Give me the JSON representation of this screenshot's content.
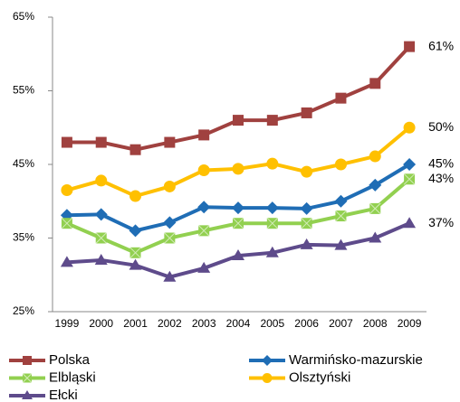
{
  "chart_data": {
    "type": "line",
    "categories": [
      "1999",
      "2000",
      "2001",
      "2002",
      "2003",
      "2004",
      "2005",
      "2006",
      "2007",
      "2008",
      "2009"
    ],
    "ylim": [
      25,
      65
    ],
    "yticks": [
      {
        "value": 25,
        "label": "25%"
      },
      {
        "value": 35,
        "label": "35%"
      },
      {
        "value": 45,
        "label": "45%"
      },
      {
        "value": 55,
        "label": "55%"
      },
      {
        "value": 65,
        "label": "65%"
      }
    ],
    "grid": false,
    "legend": "bottom",
    "series": [
      {
        "name": "Polska",
        "color": "#a0413f",
        "marker": "square",
        "values": [
          48,
          48,
          47,
          48,
          49,
          51,
          51,
          52,
          54,
          56,
          61
        ],
        "value_labels": [
          null,
          null,
          null,
          null,
          null,
          null,
          null,
          null,
          null,
          null,
          "61%"
        ]
      },
      {
        "name": "Warmińsko-mazurskie",
        "color": "#1f6db5",
        "marker": "diamond",
        "values": [
          38.1,
          38.2,
          36,
          37.1,
          39.2,
          39.1,
          39.1,
          39,
          40,
          42.2,
          45
        ],
        "value_labels": [
          null,
          null,
          null,
          null,
          null,
          null,
          null,
          null,
          null,
          null,
          "45%"
        ]
      },
      {
        "name": "Elbląski",
        "color": "#92d050",
        "marker": "star",
        "values": [
          37,
          35,
          33,
          35,
          36,
          37,
          37,
          37,
          38,
          39,
          43
        ],
        "value_labels": [
          null,
          null,
          null,
          null,
          null,
          null,
          null,
          null,
          null,
          null,
          "43%"
        ]
      },
      {
        "name": "Olsztyński",
        "color": "#ffc000",
        "marker": "circle",
        "values": [
          41.5,
          42.8,
          40.7,
          42,
          44.2,
          44.4,
          45.1,
          44,
          45,
          46.1,
          50
        ],
        "value_labels": [
          null,
          null,
          null,
          null,
          null,
          null,
          null,
          null,
          null,
          null,
          "50%"
        ]
      },
      {
        "name": "Ełcki",
        "color": "#5e4b8b",
        "marker": "triangle",
        "values": [
          31.7,
          32,
          31.3,
          29.7,
          30.9,
          32.6,
          33,
          34.1,
          34,
          35,
          37
        ],
        "value_labels": [
          null,
          null,
          null,
          null,
          null,
          null,
          null,
          null,
          null,
          null,
          "37%"
        ]
      }
    ]
  }
}
